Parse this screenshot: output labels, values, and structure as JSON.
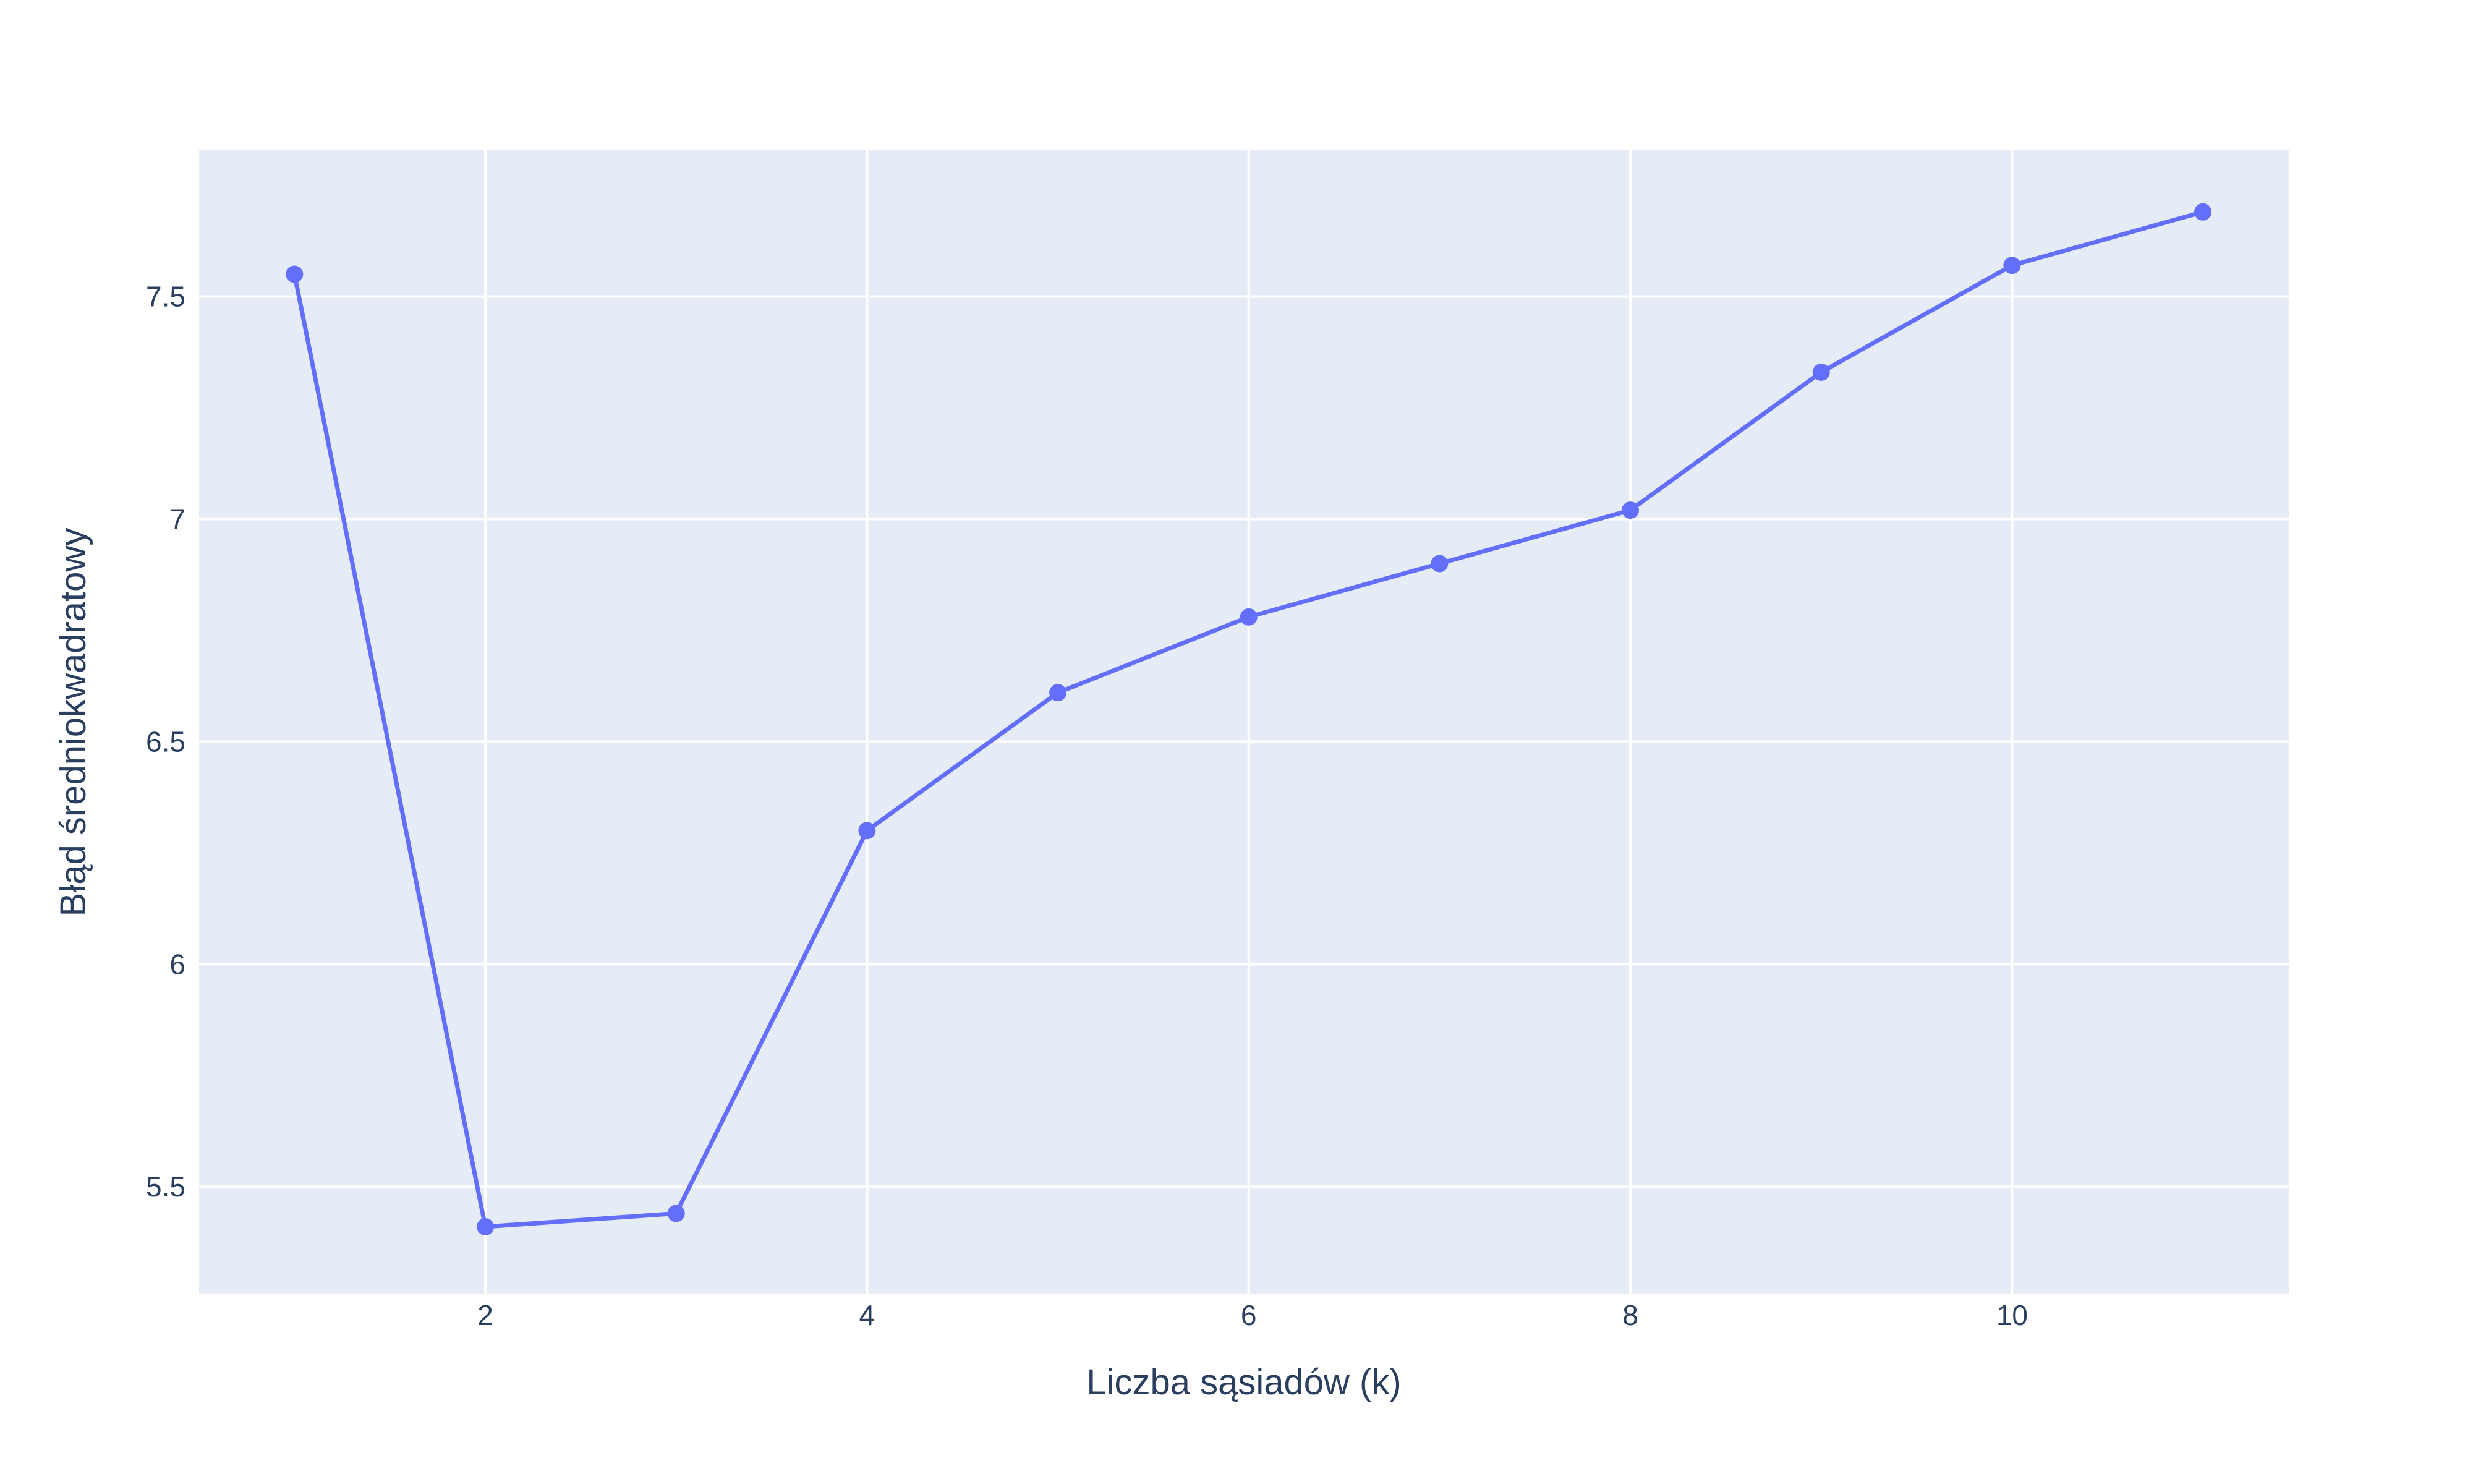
{
  "chart_data": {
    "type": "line",
    "title": "",
    "xlabel": "Liczba sąsiadów (k)",
    "ylabel": "Błąd średniokwadratowy",
    "x": [
      1,
      2,
      3,
      4,
      5,
      6,
      7,
      8,
      9,
      10,
      11
    ],
    "series": [
      {
        "values": [
          7.55,
          5.41,
          5.44,
          6.3,
          6.61,
          6.78,
          6.9,
          7.02,
          7.33,
          7.57,
          7.69
        ]
      }
    ],
    "xlim": [
      0.5,
      11.45
    ],
    "ylim": [
      5.26,
      7.83
    ],
    "x_ticks": [
      2,
      4,
      6,
      8,
      10
    ],
    "x_tick_labels": [
      "2",
      "4",
      "6",
      "8",
      "10"
    ],
    "y_ticks": [
      5.5,
      6,
      6.5,
      7,
      7.5
    ],
    "y_tick_labels": [
      "5.5",
      "6",
      "6.5",
      "7",
      "7.5"
    ],
    "grid": true,
    "legend": "none",
    "colors": {
      "line": "#636efa",
      "plot_background": "#e5ecf6",
      "grid": "#ffffff",
      "text": "#2a3f5f"
    }
  }
}
